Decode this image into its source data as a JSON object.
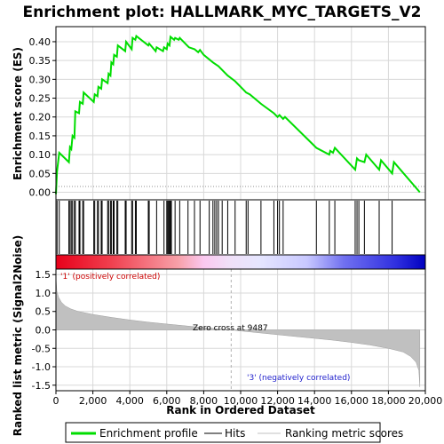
{
  "chart_data": [
    {
      "type": "line",
      "title": "Enrichment plot: HALLMARK_MYC_TARGETS_V2",
      "ylabel": "Enrichment score (ES)",
      "xlim": [
        0,
        20000
      ],
      "ylim": [
        -0.02,
        0.44
      ],
      "yticks": [
        "0.00",
        "0.05",
        "0.10",
        "0.15",
        "0.20",
        "0.25",
        "0.30",
        "0.35",
        "0.40"
      ],
      "ytick_values": [
        0.0,
        0.05,
        0.1,
        0.15,
        0.2,
        0.25,
        0.3,
        0.35,
        0.4
      ],
      "grid": true,
      "series": [
        {
          "color": "#00dd00",
          "x": [
            0,
            60,
            180,
            700,
            760,
            830,
            900,
            1000,
            1050,
            1250,
            1300,
            1450,
            1500,
            2050,
            2100,
            2250,
            2300,
            2450,
            2500,
            2800,
            2850,
            2950,
            3000,
            3100,
            3150,
            3300,
            3350,
            3750,
            3800,
            4100,
            4150,
            4300,
            4350,
            5000,
            5050,
            5400,
            5450,
            5800,
            5850,
            6000,
            6050,
            6150,
            6200,
            6400,
            6450,
            6650,
            6700,
            7100,
            7200,
            7500,
            7700,
            7800,
            8000,
            8500,
            8800,
            9000,
            9300,
            9700,
            10200,
            10300,
            10500,
            11100,
            11800,
            12000,
            12100,
            12300,
            12400,
            14100,
            14800,
            14850,
            15000,
            15100,
            16200,
            16300,
            16400,
            16700,
            16800,
            17500,
            17600,
            18200,
            18300,
            19700
          ],
          "y": [
            -0.005,
            0.055,
            0.105,
            0.08,
            0.12,
            0.115,
            0.15,
            0.145,
            0.215,
            0.21,
            0.24,
            0.235,
            0.265,
            0.24,
            0.26,
            0.255,
            0.28,
            0.275,
            0.3,
            0.29,
            0.315,
            0.31,
            0.345,
            0.34,
            0.365,
            0.36,
            0.39,
            0.375,
            0.4,
            0.38,
            0.41,
            0.405,
            0.415,
            0.39,
            0.395,
            0.375,
            0.385,
            0.375,
            0.385,
            0.38,
            0.395,
            0.39,
            0.413,
            0.405,
            0.41,
            0.405,
            0.41,
            0.39,
            0.385,
            0.38,
            0.372,
            0.378,
            0.365,
            0.345,
            0.335,
            0.325,
            0.31,
            0.295,
            0.27,
            0.265,
            0.26,
            0.235,
            0.21,
            0.2,
            0.205,
            0.195,
            0.2,
            0.118,
            0.1,
            0.11,
            0.105,
            0.118,
            0.06,
            0.09,
            0.085,
            0.08,
            0.1,
            0.06,
            0.085,
            0.05,
            0.08,
            0.0
          ]
        }
      ]
    },
    {
      "type": "hits",
      "hit_positions": [
        60,
        180,
        700,
        760,
        830,
        900,
        1000,
        1050,
        1250,
        1300,
        1450,
        1500,
        2050,
        2100,
        2250,
        2300,
        2450,
        2500,
        2800,
        2850,
        2950,
        3000,
        3100,
        3150,
        3300,
        3350,
        3750,
        3800,
        4100,
        4150,
        4300,
        4350,
        5000,
        5050,
        5450,
        5850,
        6000,
        6050,
        6100,
        6150,
        6200,
        6250,
        6450,
        6700,
        7150,
        7500,
        7800,
        8300,
        8500,
        8600,
        8700,
        8800,
        9000,
        9300,
        9700,
        10300,
        10400,
        11100,
        11800,
        12000,
        12100,
        12300,
        14100,
        14800,
        15100,
        16200,
        16300,
        16400,
        16700,
        17500,
        18200
      ]
    },
    {
      "type": "area",
      "ylabel": "Ranked list metric (Signal2Noise)",
      "xlabel": "Rank in Ordered Dataset",
      "xlim": [
        0,
        20000
      ],
      "ylim": [
        -1.65,
        1.65
      ],
      "xticks": [
        "0",
        "2,000",
        "4,000",
        "6,000",
        "8,000",
        "10,000",
        "12,000",
        "14,000",
        "16,000",
        "18,000",
        "20,000"
      ],
      "xtick_values": [
        0,
        2000,
        4000,
        6000,
        8000,
        10000,
        12000,
        14000,
        16000,
        18000,
        20000
      ],
      "yticks": [
        "1.5",
        "1.0",
        "0.5",
        "0.0",
        "-0.5",
        "-1.0",
        "-1.5"
      ],
      "ytick_values": [
        1.5,
        1.0,
        0.5,
        0.0,
        -0.5,
        -1.0,
        -1.5
      ],
      "x": [
        0,
        50,
        150,
        300,
        500,
        800,
        1200,
        2000,
        3000,
        4000,
        5000,
        6000,
        7000,
        8000,
        9000,
        9487,
        10000,
        11000,
        12000,
        13000,
        14000,
        15000,
        16000,
        17000,
        18000,
        18800,
        19200,
        19500,
        19650,
        19700
      ],
      "values": [
        1.45,
        1.05,
        0.88,
        0.75,
        0.65,
        0.57,
        0.5,
        0.42,
        0.34,
        0.27,
        0.21,
        0.16,
        0.11,
        0.06,
        0.02,
        0.0,
        -0.03,
        -0.08,
        -0.13,
        -0.18,
        -0.23,
        -0.28,
        -0.34,
        -0.41,
        -0.5,
        -0.6,
        -0.72,
        -0.88,
        -1.1,
        -1.55
      ],
      "annotations": {
        "positive": "'1' (positively correlated)",
        "zero_cross": "Zero cross at 9487",
        "negative": "'3' (negatively correlated)"
      },
      "zero_cross": 9487
    }
  ],
  "legend": {
    "items": [
      {
        "label": "Enrichment profile",
        "color": "#00dd00"
      },
      {
        "label": "Hits",
        "color": "#000000"
      },
      {
        "label": "Ranking metric scores",
        "color": "#c0c0c0"
      }
    ]
  }
}
